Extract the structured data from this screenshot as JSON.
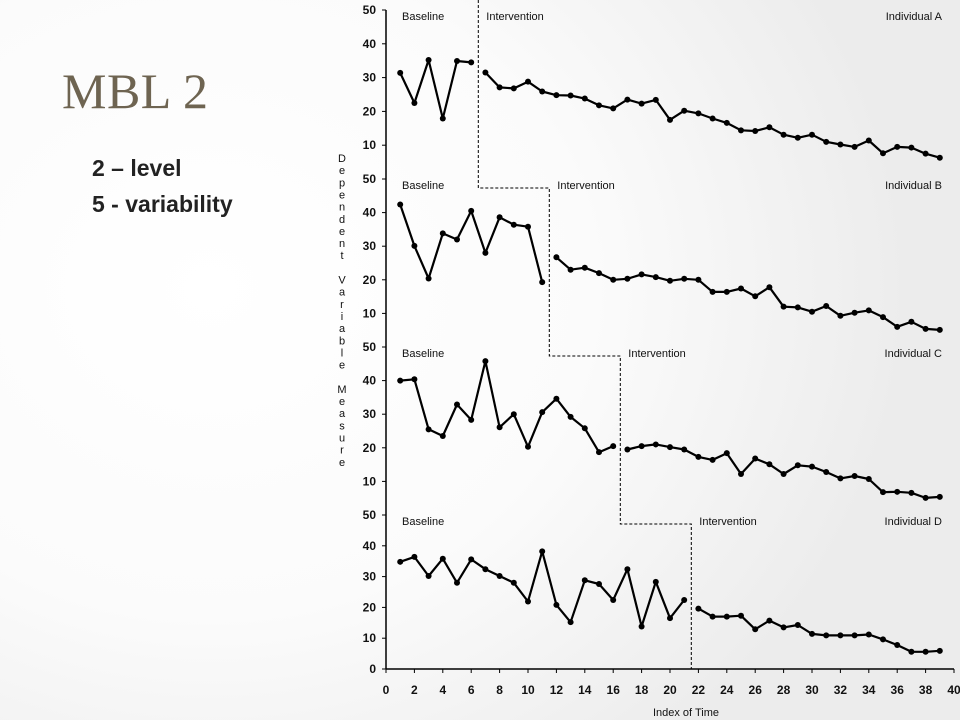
{
  "slide": {
    "title": "MBL 2",
    "bullets": [
      "2 – level",
      "5 - variability"
    ]
  },
  "chart_data": {
    "type": "line",
    "title": "",
    "xlabel": "Index of Time",
    "ylabel": "Dependent Variable Measure",
    "xlim": [
      0,
      40
    ],
    "ylim": [
      0,
      50
    ],
    "x_ticks": [
      0,
      2,
      4,
      6,
      8,
      10,
      12,
      14,
      16,
      18,
      20,
      22,
      24,
      26,
      28,
      30,
      32,
      34,
      36,
      38,
      40
    ],
    "y_ticks": [
      0,
      10,
      20,
      30,
      40,
      50
    ],
    "phase_labels": [
      "Baseline",
      "Intervention"
    ],
    "grid": false,
    "panels": [
      {
        "name": "Individual A",
        "phase_change_after": 6,
        "baseline": {
          "x": [
            1,
            2,
            3,
            4,
            5,
            6
          ],
          "y": [
            31.4,
            22.5,
            35.2,
            17.9,
            34.9,
            34.5
          ]
        },
        "intervention": {
          "x": [
            7,
            8,
            9,
            10,
            11,
            12,
            13,
            14,
            15,
            16,
            17,
            18,
            19,
            20,
            21,
            22,
            23,
            24,
            25,
            26,
            27,
            28,
            29,
            30,
            31,
            32,
            33,
            34,
            35,
            36,
            37,
            38,
            39
          ],
          "y": [
            31.5,
            27.1,
            26.8,
            28.8,
            25.9,
            24.8,
            24.7,
            23.8,
            21.8,
            20.9,
            23.5,
            22.3,
            23.4,
            17.5,
            20.2,
            19.4,
            17.9,
            16.6,
            14.4,
            14.2,
            15.3,
            13.1,
            12.2,
            13.1,
            11.0,
            10.2,
            9.5,
            11.4,
            7.6,
            9.5,
            9.3,
            7.5,
            6.3
          ]
        }
      },
      {
        "name": "Individual B",
        "phase_change_after": 11,
        "baseline": {
          "x": [
            1,
            2,
            3,
            4,
            5,
            6,
            7,
            8,
            9,
            10,
            11
          ],
          "y": [
            42.4,
            30.1,
            20.4,
            33.8,
            32.0,
            40.5,
            28.0,
            38.6,
            36.4,
            35.8,
            19.3
          ]
        },
        "intervention": {
          "x": [
            12,
            13,
            14,
            15,
            16,
            17,
            18,
            19,
            20,
            21,
            22,
            23,
            24,
            25,
            26,
            27,
            28,
            29,
            30,
            31,
            32,
            33,
            34,
            35,
            36,
            37,
            38,
            39
          ],
          "y": [
            26.7,
            23.0,
            23.6,
            22.0,
            20.0,
            20.3,
            21.6,
            20.8,
            19.7,
            20.3,
            20.0,
            16.4,
            16.4,
            17.4,
            15.1,
            17.8,
            12.0,
            11.8,
            10.5,
            12.2,
            9.3,
            10.2,
            10.9,
            8.9,
            6.0,
            7.5,
            5.4,
            5.1
          ]
        }
      },
      {
        "name": "Individual C",
        "phase_change_after": 16,
        "baseline": {
          "x": [
            1,
            2,
            3,
            4,
            5,
            6,
            7,
            8,
            9,
            10,
            11,
            12,
            13,
            14,
            15,
            16
          ],
          "y": [
            40.0,
            40.4,
            25.5,
            23.5,
            32.9,
            28.3,
            45.8,
            26.1,
            30.0,
            20.3,
            30.6,
            34.6,
            29.2,
            25.8,
            18.7,
            20.5
          ]
        },
        "intervention": {
          "x": [
            17,
            18,
            19,
            20,
            21,
            22,
            23,
            24,
            25,
            26,
            27,
            28,
            29,
            30,
            31,
            32,
            33,
            34,
            35,
            36,
            37,
            38,
            39
          ],
          "y": [
            19.5,
            20.5,
            21.0,
            20.2,
            19.5,
            17.3,
            16.4,
            18.4,
            12.2,
            16.8,
            15.1,
            12.2,
            14.8,
            14.4,
            12.8,
            10.9,
            11.6,
            10.7,
            6.8,
            6.9,
            6.6,
            5.1,
            5.4
          ]
        }
      },
      {
        "name": "Individual D",
        "phase_change_after": 21,
        "baseline": {
          "x": [
            1,
            2,
            3,
            4,
            5,
            6,
            7,
            8,
            9,
            10,
            11,
            12,
            13,
            14,
            15,
            16,
            17,
            18,
            19,
            20,
            21
          ],
          "y": [
            34.8,
            36.4,
            30.2,
            35.8,
            28.0,
            35.6,
            32.4,
            30.2,
            28.0,
            21.9,
            38.2,
            20.8,
            15.2,
            28.8,
            27.6,
            22.4,
            32.4,
            13.8,
            28.3,
            16.5,
            22.4
          ]
        },
        "intervention": {
          "x": [
            22,
            23,
            24,
            25,
            26,
            27,
            28,
            29,
            30,
            31,
            32,
            33,
            34,
            35,
            36,
            37,
            38,
            39
          ],
          "y": [
            19.6,
            17.0,
            17.0,
            17.3,
            12.9,
            15.7,
            13.5,
            14.3,
            11.4,
            10.9,
            10.9,
            10.9,
            11.2,
            9.6,
            7.8,
            5.6,
            5.6,
            5.9
          ]
        }
      }
    ]
  }
}
